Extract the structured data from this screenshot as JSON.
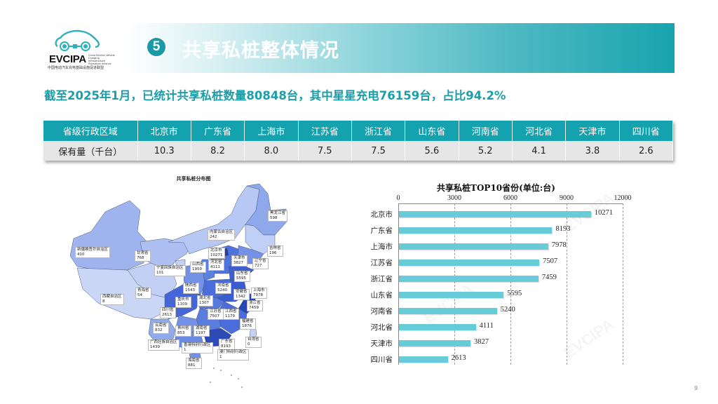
{
  "logo": {
    "brand": "EVCIPA",
    "brand_sub": "China Electric Vehicle Charging Infrastructure Promotion Alliance",
    "cn_name": "中国电动汽车充电基础设施促进联盟"
  },
  "banner": {
    "section_number": "5",
    "title": "共享私桩整体情况"
  },
  "subtitle": "截至2025年1月，已统计共享私桩数量80848台，其中星星充电76159台，占比94.2%",
  "table": {
    "header_label": "省级行政区域",
    "row_label": "保有量（千台）",
    "columns": [
      "北京市",
      "广东省",
      "上海市",
      "江苏省",
      "浙江省",
      "山东省",
      "河南省",
      "河北省",
      "天津市",
      "四川省"
    ],
    "values": [
      "10.3",
      "8.2",
      "8.0",
      "7.5",
      "7.5",
      "5.6",
      "5.2",
      "4.1",
      "3.8",
      "2.6"
    ]
  },
  "map": {
    "title": "共享私桩分布图",
    "labels": [
      {
        "name": "黑龙江省",
        "value": "598"
      },
      {
        "name": "内蒙古自治区",
        "value": "242"
      },
      {
        "name": "新疆维吾尔自治区",
        "value": "410"
      },
      {
        "name": "甘肃省",
        "value": "768"
      },
      {
        "name": "北京市",
        "value": "10271"
      },
      {
        "name": "天津市",
        "value": "3827"
      },
      {
        "name": "吉林省",
        "value": "196"
      },
      {
        "name": "辽宁省",
        "value": "727"
      },
      {
        "name": "山西省",
        "value": "1950"
      },
      {
        "name": "河北省",
        "value": "4111"
      },
      {
        "name": "宁夏回族自治区",
        "value": "101"
      },
      {
        "name": "山东省",
        "value": "5595"
      },
      {
        "name": "陕西省",
        "value": "1543"
      },
      {
        "name": "河南省",
        "value": "5240"
      },
      {
        "name": "安徽省",
        "value": "1342"
      },
      {
        "name": "上海市",
        "value": "7978"
      },
      {
        "name": "青海省",
        "value": "54"
      },
      {
        "name": "西藏自治区",
        "value": "8"
      },
      {
        "name": "重庆市",
        "value": "1109"
      },
      {
        "name": "湖北省",
        "value": "1307"
      },
      {
        "name": "浙江省",
        "value": "7459"
      },
      {
        "name": "四川省",
        "value": "2613"
      },
      {
        "name": "江苏省",
        "value": "7507"
      },
      {
        "name": "江西省",
        "value": "1179"
      },
      {
        "name": "福建省",
        "value": "1876"
      },
      {
        "name": "云南省",
        "value": "832"
      },
      {
        "name": "贵州省",
        "value": "853"
      },
      {
        "name": "湖南省",
        "value": "1197"
      },
      {
        "name": "广西壮族自治区",
        "value": "1439"
      },
      {
        "name": "香港特别行政区",
        "value": "1"
      },
      {
        "name": "广东省",
        "value": "8193"
      },
      {
        "name": "台湾省",
        "value": "0"
      },
      {
        "name": "澳门特别行政区",
        "value": "1"
      },
      {
        "name": "海南省",
        "value": "881"
      }
    ]
  },
  "chart_data": {
    "type": "bar",
    "orientation": "horizontal",
    "title": "共享私桩TOP10省份(单位:台)",
    "categories": [
      "北京市",
      "广东省",
      "上海市",
      "江苏省",
      "浙江省",
      "山东省",
      "河南省",
      "河北省",
      "天津市",
      "四川省"
    ],
    "values": [
      10271,
      8193,
      7978,
      7507,
      7459,
      5595,
      5240,
      4111,
      3827,
      2613
    ],
    "value_labels": [
      "10271",
      "8193",
      "7978",
      "7507",
      "7459",
      "5595",
      "5240",
      "4111",
      "3827",
      "2613"
    ],
    "xlabel": "",
    "ylabel": "",
    "xlim": [
      0,
      12000
    ],
    "xticks": [
      "0",
      "3000",
      "6000",
      "9000",
      "12000"
    ],
    "axis_position": "top",
    "grid": "vertical dashed",
    "bar_color": "#67ccd8"
  },
  "colors": {
    "accent_teal": "#14a2ae",
    "subtitle_teal": "#1b9ea8",
    "bar": "#67ccd8",
    "table_row_bg": "#e6e6e6"
  },
  "page_number": "9"
}
